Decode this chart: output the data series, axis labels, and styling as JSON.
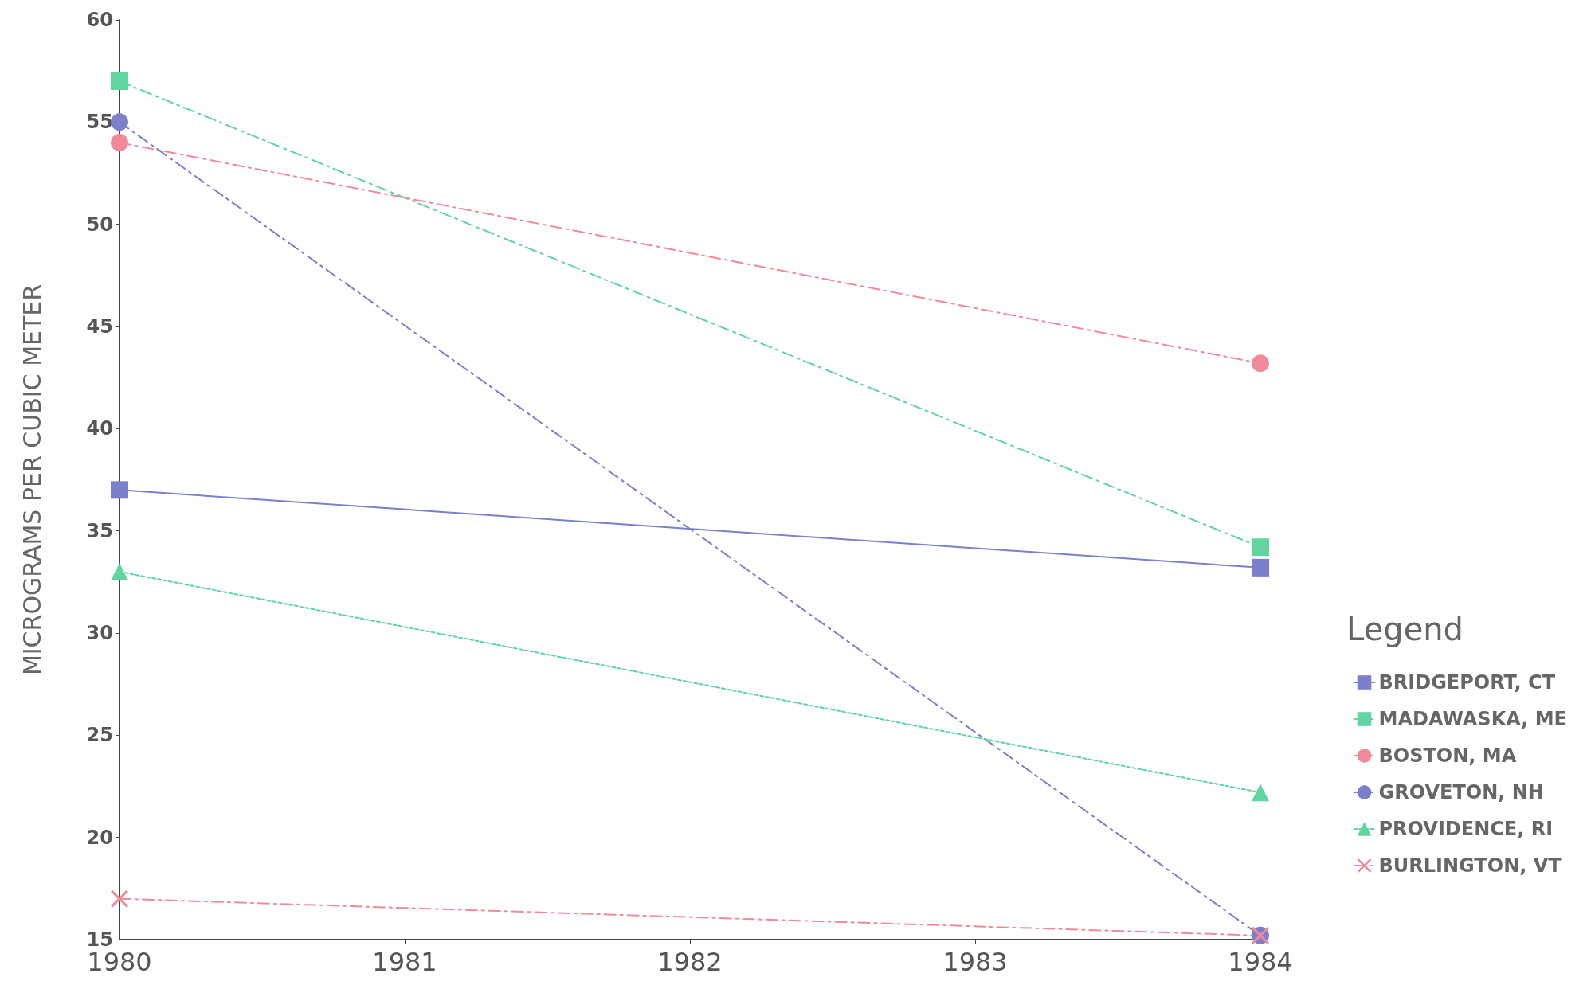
{
  "chart_data": {
    "type": "line",
    "ylabel": "MICROGRAMS PER CUBIC METER",
    "legend_title": "Legend",
    "x": [
      1980,
      1984
    ],
    "xlim": [
      1980,
      1984
    ],
    "xticks": [
      1980,
      1981,
      1982,
      1983,
      1984
    ],
    "ylim": [
      15,
      60
    ],
    "yticks": [
      15,
      20,
      25,
      30,
      35,
      40,
      45,
      50,
      55,
      60
    ],
    "grid": false,
    "legend": "right",
    "series": [
      {
        "name": "BRIDGEPORT, CT",
        "color": "#7b7fcc",
        "values": [
          37,
          33.2
        ],
        "marker": "square",
        "line_style": "solid"
      },
      {
        "name": "MADAWASKA, ME",
        "color": "#5fd6a0",
        "values": [
          57,
          34.2
        ],
        "marker": "square",
        "line_style": "dashed"
      },
      {
        "name": "BOSTON, MA",
        "color": "#f08a9a",
        "values": [
          54,
          43.2
        ],
        "marker": "circle",
        "line_style": "dashed"
      },
      {
        "name": "GROVETON, NH",
        "color": "#7b7fcc",
        "values": [
          55,
          15.2
        ],
        "marker": "circle",
        "line_style": "dashed"
      },
      {
        "name": "PROVIDENCE, RI",
        "color": "#5fd6a0",
        "values": [
          33,
          22.2
        ],
        "marker": "triangle",
        "line_style": "dotted"
      },
      {
        "name": "BURLINGTON, VT",
        "color": "#f08a9a",
        "values": [
          17,
          15.2
        ],
        "marker": "cross",
        "line_style": "dashed"
      }
    ]
  }
}
